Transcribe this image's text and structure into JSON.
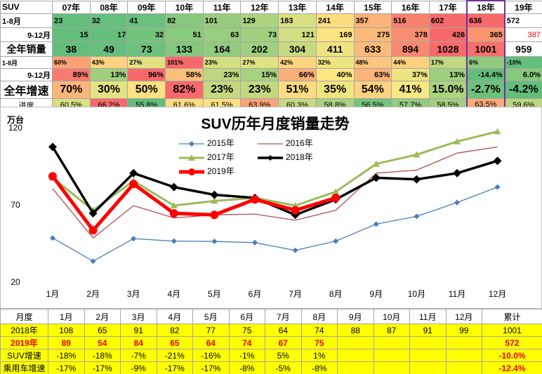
{
  "top_table": {
    "header": [
      "SUV",
      "07年",
      "08年",
      "09年",
      "10年",
      "11年",
      "12年",
      "13年",
      "14年",
      "15年",
      "16年",
      "17年",
      "18年",
      "19年"
    ],
    "rows": [
      {
        "label": "1-8月",
        "cells": [
          23,
          32,
          41,
          82,
          101,
          129,
          183,
          241,
          357,
          516,
          602,
          636,
          572
        ],
        "colors": [
          "#63be7b",
          "#66bf7c",
          "#6ac07c",
          "#86c87d",
          "#97cc7e",
          "#acd380",
          "#d8e082",
          "#fedd81",
          "#fbb479",
          "#f8816d",
          "#f86a6a",
          "#f8696b",
          "#ffffff"
        ]
      },
      {
        "label": "9-12月",
        "cells": [
          15,
          17,
          32,
          51,
          63,
          73,
          121,
          169,
          275,
          378,
          426,
          365,
          387
        ],
        "colors": [
          "#63be7b",
          "#65bf7c",
          "#74c37c",
          "#8acb7e",
          "#98ce7f",
          "#a2d07f",
          "#d3df82",
          "#fee382",
          "#fbb97a",
          "#f98f70",
          "#f8696b",
          "#fa9572",
          "#ffffff"
        ]
      },
      {
        "label": "全年销量",
        "cells": [
          38,
          49,
          73,
          133,
          164,
          202,
          304,
          411,
          633,
          894,
          1028,
          1001,
          959
        ],
        "colors": [
          "#63be7b",
          "#66bf7c",
          "#6ec17c",
          "#84c77d",
          "#91cb7e",
          "#9fcf7f",
          "#c6da81",
          "#eee582",
          "#fcbb7a",
          "#f98870",
          "#f8696b",
          "#f8706c",
          "#ffffff"
        ]
      },
      {
        "label": "1-8月",
        "cells": [
          "60%",
          "43%",
          "27%",
          "101%",
          "23%",
          "27%",
          "42%",
          "32%",
          "48%",
          "44%",
          "17%",
          "6%",
          "-10%"
        ],
        "colors": [
          "#fba276",
          "#fed380",
          "#e0e283",
          "#f8696b",
          "#d4df82",
          "#e0e283",
          "#fed680",
          "#eee582",
          "#fdc57d",
          "#fed080",
          "#bfd881",
          "#8fca7e",
          "#63be7b"
        ]
      },
      {
        "label": "9-12月",
        "cells": [
          "89%",
          "13%",
          "96%",
          "58%",
          "23%",
          "15%",
          "66%",
          "40%",
          "63%",
          "37%",
          "13%",
          "-14.4%",
          "6.0%"
        ],
        "colors": [
          "#f97a6e",
          "#a0cf7f",
          "#f8696b",
          "#fcbf7b",
          "#bdd780",
          "#a6d17f",
          "#fbae78",
          "#fee783",
          "#fbb479",
          "#eee582",
          "#a0cf7f",
          "#63be7b",
          "#88c97e"
        ]
      },
      {
        "label": "全年增速",
        "cells": [
          "70%",
          "30%",
          "50%",
          "82%",
          "23%",
          "23%",
          "51%",
          "35%",
          "54%",
          "41%",
          "15.0%",
          "-2.7%",
          "-4.2%"
        ],
        "colors": [
          "#fcb67a",
          "#e4e383",
          "#fee182",
          "#f8696b",
          "#c3d981",
          "#c3d981",
          "#fedb81",
          "#eee582",
          "#fed280",
          "#f6e884",
          "#aad27f",
          "#6dc17c",
          "#63be7b"
        ]
      },
      {
        "label": "进度",
        "cells": [
          "60.5%",
          "66.2%",
          "55.8%",
          "61.6%",
          "61.5%",
          "63.9%",
          "60.3%",
          "58.8%",
          "56.5%",
          "57.7%",
          "58.5%",
          "63.5%",
          "59.6%"
        ],
        "colors": [
          "#d8e082",
          "#f8696b",
          "#63be7b",
          "#fedd81",
          "#fee082",
          "#fba276",
          "#c6da81",
          "#a9d27f",
          "#75c37c",
          "#91cb7e",
          "#a3d07f",
          "#fbab78",
          "#bcd780"
        ]
      }
    ]
  },
  "chart_data": {
    "type": "line",
    "title": "SUV历年月度销量走势",
    "ylabel": "万台",
    "categories": [
      "1月",
      "2月",
      "3月",
      "4月",
      "5月",
      "6月",
      "7月",
      "8月",
      "9月",
      "10月",
      "11月",
      "12月"
    ],
    "ylim": [
      20,
      120
    ],
    "yticks": [
      20,
      70,
      120
    ],
    "series": [
      {
        "name": "2015年",
        "color": "#4a7ebb",
        "marker": "diamond",
        "values": [
          49,
          34,
          48.6,
          47,
          46.8,
          46,
          41,
          47,
          58,
          63,
          72,
          82
        ]
      },
      {
        "name": "2016年",
        "color": "#b0504e",
        "marker": "none",
        "values": [
          81,
          49,
          70,
          62,
          64,
          64.5,
          60.5,
          67,
          91,
          93,
          104,
          108
        ]
      },
      {
        "name": "2017年",
        "color": "#9bbb59",
        "marker": "triangle",
        "values": [
          88,
          67,
          86,
          70,
          73,
          75,
          70,
          79,
          97,
          103,
          111.5,
          118
        ]
      },
      {
        "name": "2018年",
        "color": "#000000",
        "marker": "diamond",
        "values": [
          108,
          65,
          91,
          82,
          77,
          75,
          64,
          74,
          88,
          87,
          91,
          99
        ]
      },
      {
        "name": "2019年",
        "color": "#ff0000",
        "marker": "circle",
        "values": [
          89,
          54,
          84,
          65,
          64,
          74,
          67,
          75,
          null,
          null,
          null,
          null
        ]
      }
    ]
  },
  "bottom_table": {
    "header": [
      "月度",
      "1月",
      "2月",
      "3月",
      "4月",
      "5月",
      "6月",
      "7月",
      "8月",
      "9月",
      "10月",
      "11月",
      "12月",
      "累计"
    ],
    "rows": [
      {
        "label": "2018年",
        "cells": [
          108,
          65,
          91,
          82,
          77,
          75,
          64,
          74,
          88,
          87,
          91,
          99,
          1001
        ]
      },
      {
        "label": "2019年",
        "cells": [
          89,
          54,
          84,
          65,
          64,
          74,
          67,
          75,
          null,
          null,
          null,
          null,
          572
        ]
      },
      {
        "label": "SUV增速",
        "cells": [
          "-18%",
          "-18%",
          "-7%",
          "-21%",
          "-16%",
          "-1%",
          "5%",
          "1%",
          null,
          null,
          null,
          null,
          "-10.0%"
        ]
      },
      {
        "label": "乘用车增速",
        "cells": [
          "-17%",
          "-17%",
          "-9%",
          "-17%",
          "-17%",
          "-8%",
          "-5%",
          "-8%",
          null,
          null,
          null,
          null,
          "-12.4%"
        ]
      }
    ]
  }
}
